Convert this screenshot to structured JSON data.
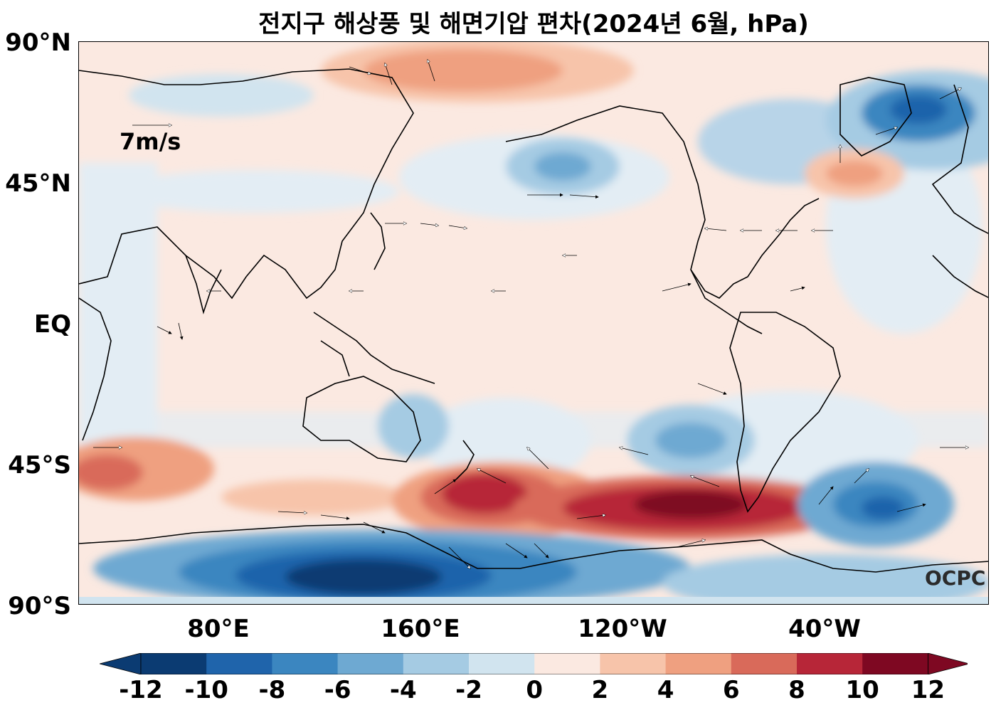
{
  "title": "전지구 해상풍 및 해면기압 편차(2024년 6월, hPa)",
  "y_axis": {
    "labels": [
      "90°N",
      "45°N",
      "EQ",
      "45°S",
      "90°S"
    ]
  },
  "x_axis": {
    "labels": [
      "80°E",
      "160°E",
      "120°W",
      "40°W"
    ]
  },
  "reference_vector": {
    "label": "7m/s"
  },
  "watermark": "OCPC",
  "colorbar": {
    "ticks": [
      "-12",
      "-10",
      "-8",
      "-6",
      "-4",
      "-2",
      "0",
      "2",
      "4",
      "6",
      "8",
      "10",
      "12"
    ],
    "colors": [
      "#0b3b72",
      "#1f64ab",
      "#3b86c0",
      "#6ea9d2",
      "#a5cbe3",
      "#d1e4ef",
      "#eaf1f5",
      "#fbe9e1",
      "#f7c4aa",
      "#efa080",
      "#d96a5a",
      "#b72638",
      "#7e0822"
    ]
  },
  "palette": {
    "land_line": "#000000",
    "neutral_pos": "#fbe9e1",
    "neutral_neg": "#e3edf4"
  }
}
